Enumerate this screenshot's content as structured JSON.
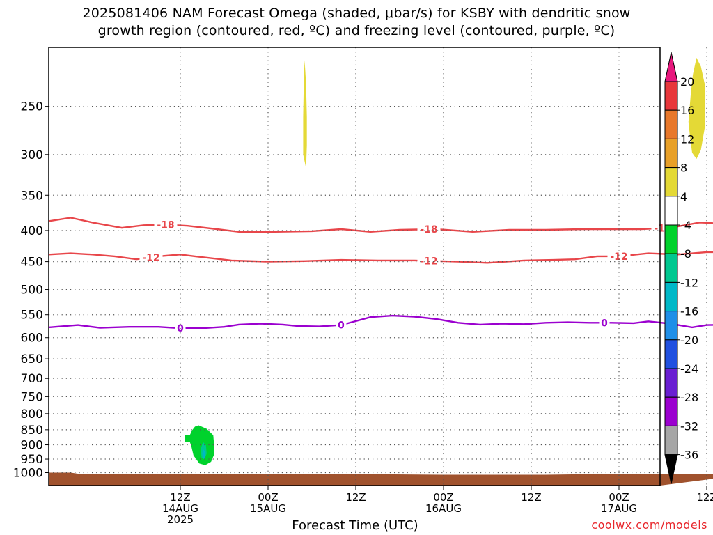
{
  "title_line1": "2025081406 NAM Forecast Omega (shaded, μbar/s) for KSBY with dendritic snow",
  "title_line2": "growth region (contoured, red, ºC) and freezing level (contoured, purple, ºC)",
  "credit": "coolwx.com/models",
  "chart_data": {
    "type": "heatmap",
    "xlabel": "Forecast Time (UTC)",
    "ylabel": "",
    "x_range_hours": [
      -12,
      72
    ],
    "y_scale": "log",
    "y_range_hpa": [
      1050,
      200
    ],
    "grid": true,
    "y_ticks": [
      250,
      300,
      350,
      400,
      450,
      500,
      550,
      600,
      650,
      700,
      750,
      800,
      850,
      900,
      950,
      1000
    ],
    "x_ticks": [
      {
        "hour": 0,
        "lines": [
          "12Z",
          "14AUG",
          "2025"
        ]
      },
      {
        "hour": 12,
        "lines": [
          "00Z",
          "15AUG"
        ]
      },
      {
        "hour": 24,
        "lines": [
          "12Z"
        ]
      },
      {
        "hour": 36,
        "lines": [
          "00Z",
          "16AUG"
        ]
      },
      {
        "hour": 48,
        "lines": [
          "12Z"
        ]
      },
      {
        "hour": 60,
        "lines": [
          "00Z",
          "17AUG"
        ]
      },
      {
        "hour": 72,
        "lines": [
          "12Z"
        ]
      }
    ],
    "contours": [
      {
        "label": "-18",
        "color": "#e8464a",
        "points": [
          [
            -18,
            386
          ],
          [
            -15,
            381
          ],
          [
            -12,
            388
          ],
          [
            -8,
            396
          ],
          [
            -5,
            392
          ],
          [
            -2,
            391
          ],
          [
            1,
            393
          ],
          [
            5,
            398
          ],
          [
            8,
            402
          ],
          [
            13,
            402
          ],
          [
            18,
            401
          ],
          [
            22,
            398
          ],
          [
            26,
            402
          ],
          [
            30,
            399
          ],
          [
            35,
            398
          ],
          [
            40,
            402
          ],
          [
            45,
            399
          ],
          [
            50,
            399
          ],
          [
            55,
            398
          ],
          [
            60,
            398
          ],
          [
            63,
            398
          ],
          [
            67,
            396
          ],
          [
            71,
            388
          ],
          [
            75,
            390
          ],
          [
            78,
            386
          ]
        ],
        "labels": [
          [
            -2,
            "-18"
          ],
          [
            34,
            "-18"
          ],
          [
            66,
            "-18"
          ]
        ]
      },
      {
        "label": "-12",
        "color": "#e8464a",
        "points": [
          [
            -18,
            438
          ],
          [
            -15,
            436
          ],
          [
            -12,
            438
          ],
          [
            -9,
            441
          ],
          [
            -6,
            446
          ],
          [
            -3,
            441
          ],
          [
            0,
            438
          ],
          [
            2,
            441
          ],
          [
            7,
            448
          ],
          [
            12,
            450
          ],
          [
            17,
            449
          ],
          [
            22,
            447
          ],
          [
            27,
            448
          ],
          [
            32,
            448
          ],
          [
            38,
            450
          ],
          [
            42,
            452
          ],
          [
            47,
            448
          ],
          [
            51,
            447
          ],
          [
            54,
            446
          ],
          [
            57,
            441
          ],
          [
            60,
            441
          ],
          [
            64,
            436
          ],
          [
            68,
            438
          ],
          [
            72,
            434
          ],
          [
            75,
            434
          ],
          [
            78,
            434
          ]
        ],
        "labels": [
          [
            -4,
            "-12"
          ],
          [
            34,
            "-12"
          ],
          [
            60,
            "-12"
          ]
        ]
      },
      {
        "label": "0",
        "color": "#9b00cf",
        "points": [
          [
            -18,
            577
          ],
          [
            -14,
            572
          ],
          [
            -11,
            578
          ],
          [
            -7,
            576
          ],
          [
            -3,
            576
          ],
          [
            0,
            579
          ],
          [
            3,
            579
          ],
          [
            6,
            576
          ],
          [
            8,
            571
          ],
          [
            11,
            569
          ],
          [
            14,
            571
          ],
          [
            16,
            574
          ],
          [
            19,
            575
          ],
          [
            22,
            572
          ],
          [
            26,
            555
          ],
          [
            29,
            552
          ],
          [
            32,
            554
          ],
          [
            35,
            559
          ],
          [
            38,
            567
          ],
          [
            41,
            571
          ],
          [
            44,
            569
          ],
          [
            47,
            570
          ],
          [
            50,
            567
          ],
          [
            53,
            566
          ],
          [
            56,
            567
          ],
          [
            59,
            567
          ],
          [
            62,
            568
          ],
          [
            64,
            564
          ],
          [
            67,
            569
          ],
          [
            70,
            577
          ],
          [
            72,
            572
          ],
          [
            75,
            571
          ],
          [
            78,
            570
          ]
        ],
        "labels": [
          [
            0,
            "0"
          ],
          [
            22,
            "0"
          ],
          [
            58,
            "0"
          ]
        ]
      }
    ],
    "shaded_regions": [
      {
        "value_range": [
          4,
          8
        ],
        "color": "#e4d936",
        "points": [
          [
            17,
            210
          ],
          [
            17.2,
            230
          ],
          [
            17.3,
            260
          ],
          [
            17.3,
            290
          ],
          [
            17.2,
            316
          ],
          [
            16.8,
            300
          ],
          [
            16.8,
            260
          ],
          [
            16.9,
            225
          ]
        ]
      },
      {
        "value_range": [
          4,
          8
        ],
        "color": "#e4d936",
        "points": [
          [
            70.6,
            208
          ],
          [
            71.2,
            215
          ],
          [
            71.8,
            232
          ],
          [
            71.8,
            268
          ],
          [
            71.2,
            295
          ],
          [
            70.6,
            305
          ],
          [
            70.0,
            298
          ],
          [
            69.7,
            280
          ],
          [
            69.5,
            265
          ],
          [
            69.8,
            240
          ],
          [
            70.1,
            222
          ]
        ]
      },
      {
        "value_range": [
          -8,
          -4
        ],
        "color": "#00d22c",
        "points": [
          [
            2.5,
            836
          ],
          [
            3.6,
            847
          ],
          [
            4.5,
            868
          ],
          [
            4.6,
            895
          ],
          [
            4.6,
            935
          ],
          [
            4.2,
            960
          ],
          [
            3.4,
            972
          ],
          [
            2.6,
            966
          ],
          [
            1.8,
            937
          ],
          [
            1.5,
            905
          ],
          [
            1.3,
            890
          ],
          [
            0.6,
            890
          ],
          [
            0.6,
            868
          ],
          [
            1.3,
            868
          ],
          [
            1.6,
            852
          ],
          [
            2.0,
            840
          ]
        ]
      },
      {
        "value_range": [
          -12,
          -8
        ],
        "color": "#00c890",
        "points": [
          [
            3.1,
            890
          ],
          [
            3.5,
            902
          ],
          [
            3.6,
            930
          ],
          [
            3.3,
            952
          ],
          [
            2.9,
            945
          ],
          [
            2.8,
            915
          ]
        ]
      },
      {
        "value_range": [
          -16,
          -12
        ],
        "color": "#00b8c8",
        "points": [
          [
            3.1,
            915
          ],
          [
            3.4,
            922
          ],
          [
            3.4,
            945
          ],
          [
            3.1,
            948
          ],
          [
            3.0,
            930
          ]
        ]
      }
    ],
    "terrain": {
      "color": "#a0522d",
      "points": [
        [
          -18,
          1000
        ],
        [
          -15,
          1000
        ],
        [
          -14,
          1004
        ],
        [
          4,
          1004
        ],
        [
          6,
          1006
        ],
        [
          26,
          1006
        ],
        [
          36,
          1008
        ],
        [
          50,
          1008
        ],
        [
          58,
          1005
        ],
        [
          78,
          1005
        ]
      ]
    },
    "colorbar": {
      "levels": [
        "20",
        "16",
        "12",
        "8",
        "4",
        "-4",
        "-8",
        "-12",
        "-16",
        "-20",
        "-24",
        "-28",
        "-32",
        "-36"
      ],
      "colors": [
        "#e8177d",
        "#e8373b",
        "#e8782b",
        "#e8a028",
        "#e4d936",
        "#ffffff",
        "#00d22c",
        "#00c890",
        "#00b8c8",
        "#1f8fe8",
        "#2050e0",
        "#6a1fd2",
        "#9b00cf",
        "#a6a6a6",
        "#000000"
      ]
    }
  }
}
